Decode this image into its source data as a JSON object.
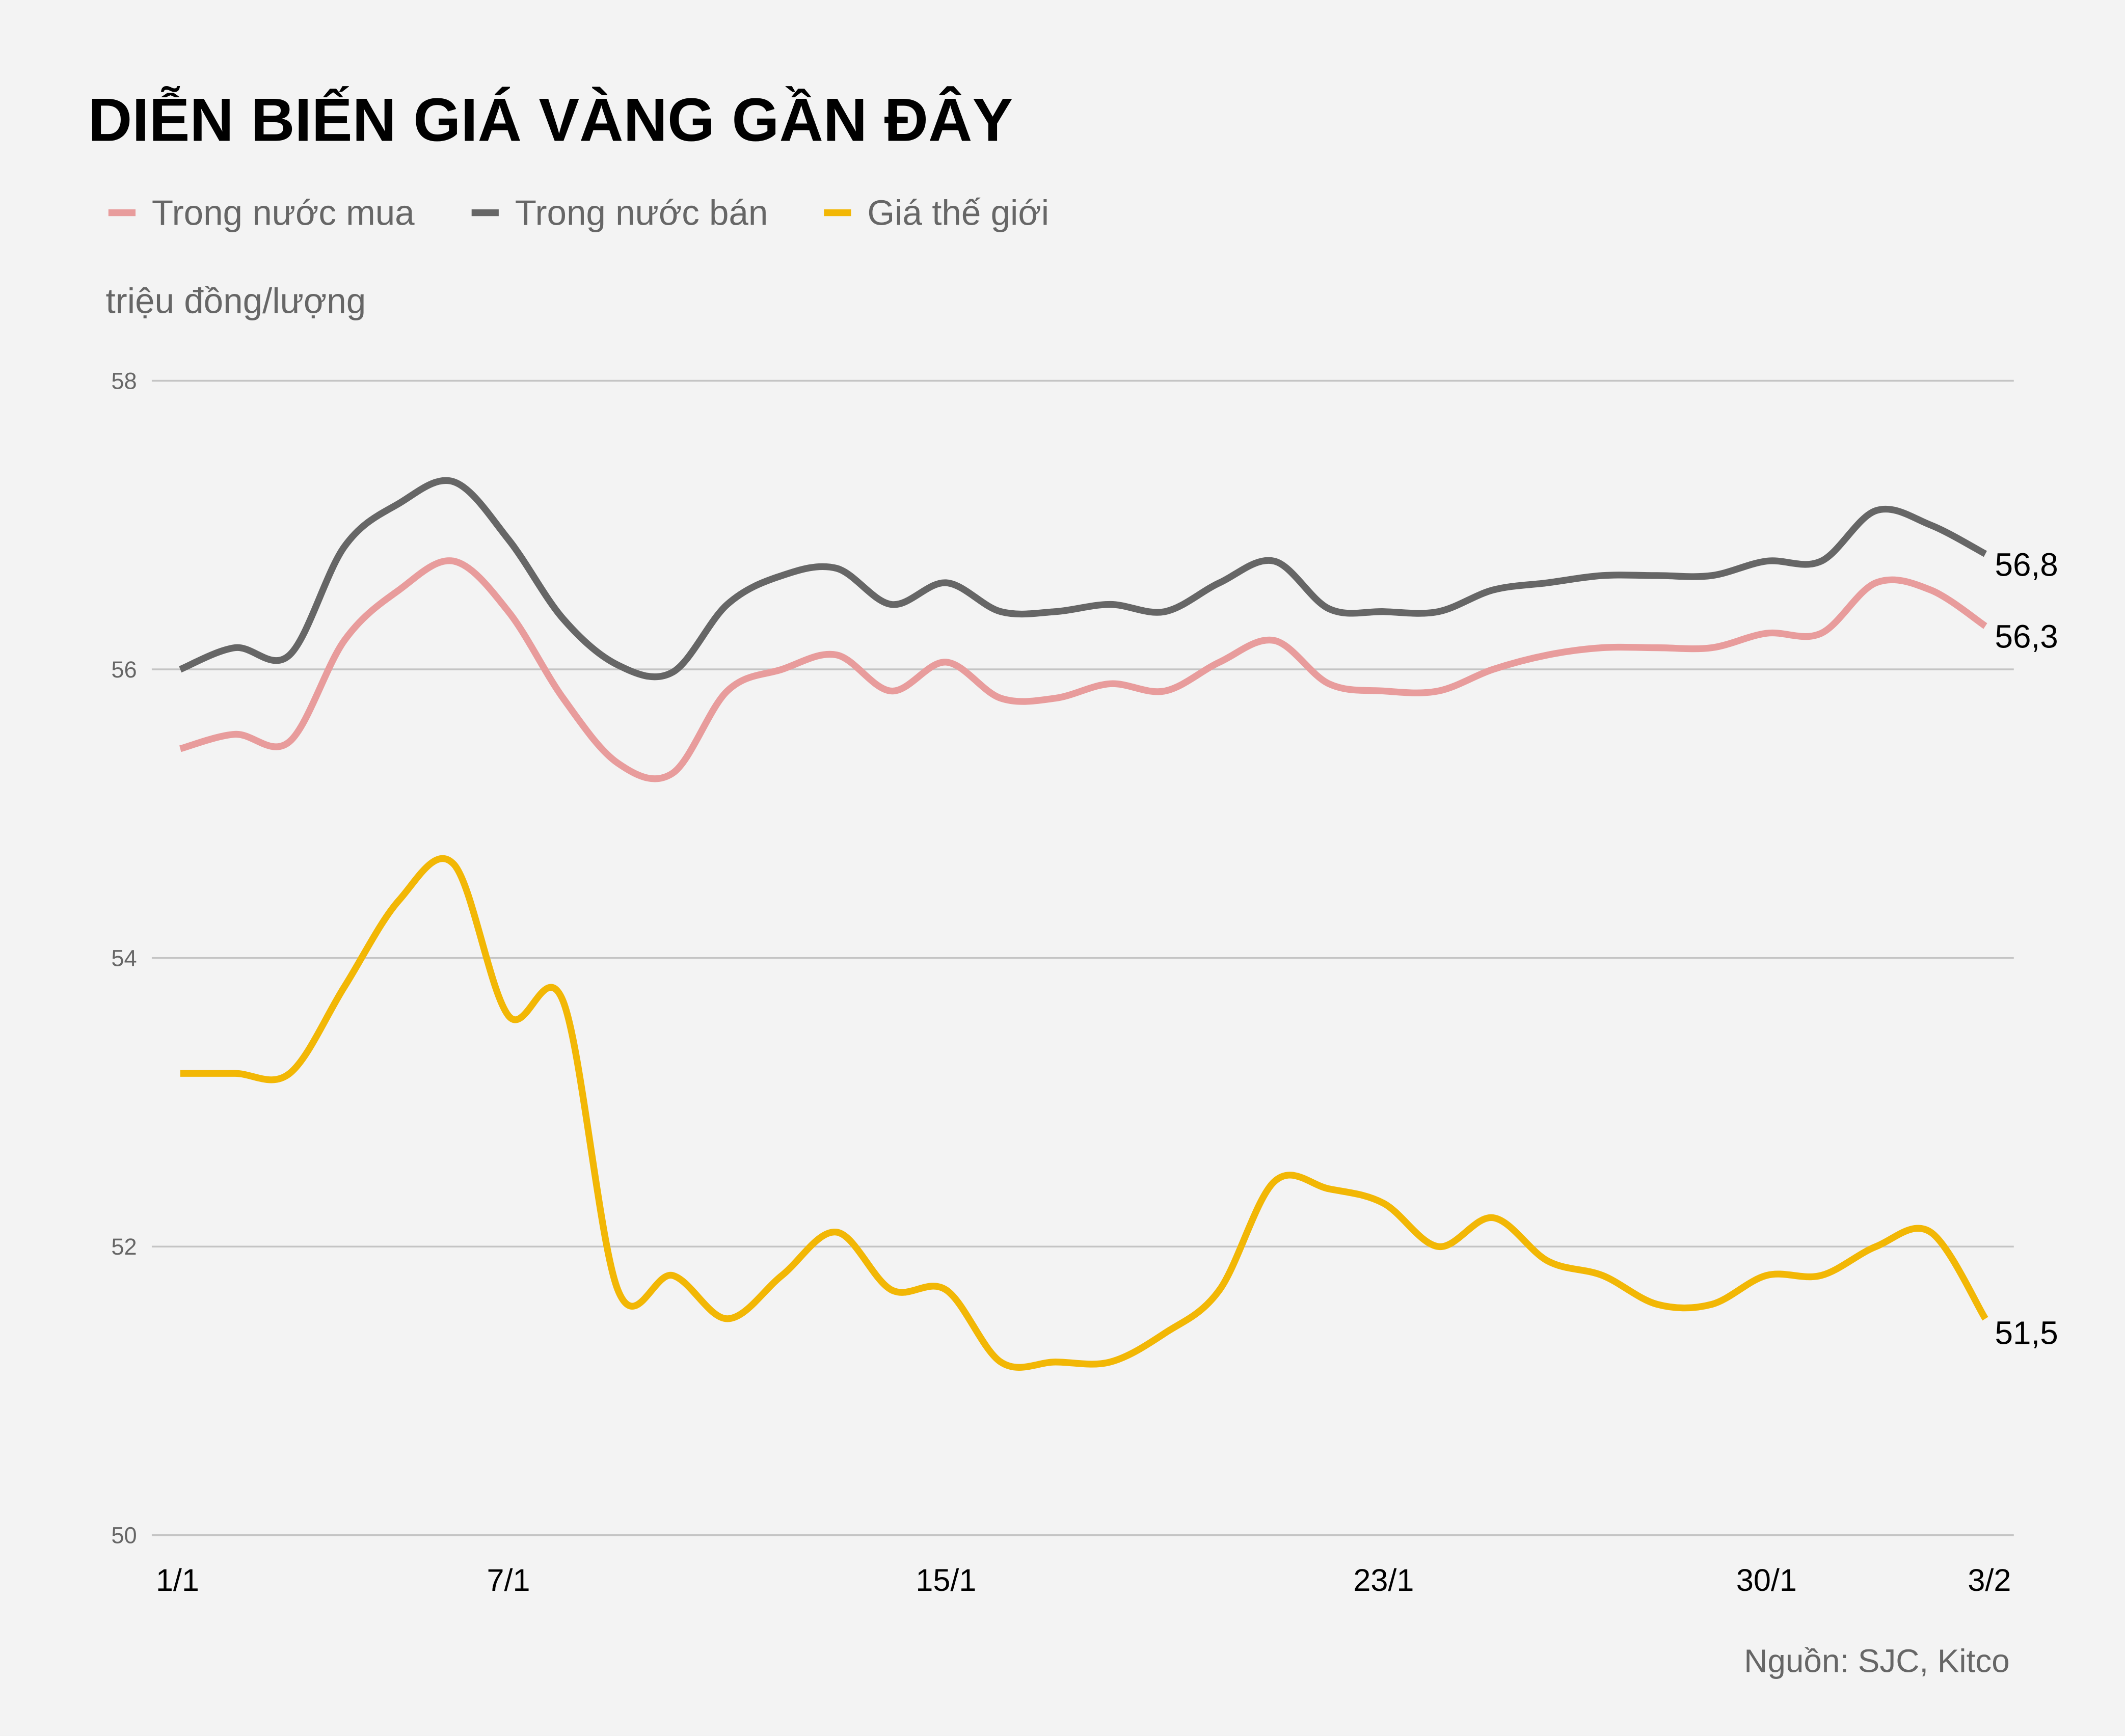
{
  "chart_data": {
    "type": "line",
    "title": "DIỄN BIẾN GIÁ VÀNG GẦN ĐÂY",
    "ylabel": "triệu đồng/lượng",
    "xlabel": "",
    "source": "Nguồn: SJC, Kitco",
    "ylim": [
      50,
      58
    ],
    "yticks": [
      "50",
      "52",
      "54",
      "56",
      "58"
    ],
    "grid": "horizontal",
    "legend_position": "top-left",
    "x": [
      "1/1",
      "2/1",
      "3/1",
      "4/1",
      "5/1",
      "6/1",
      "7/1",
      "8/1",
      "9/1",
      "10/1",
      "11/1",
      "12/1",
      "13/1",
      "14/1",
      "15/1",
      "16/1",
      "17/1",
      "18/1",
      "19/1",
      "20/1",
      "21/1",
      "22/1",
      "23/1",
      "24/1",
      "25/1",
      "26/1",
      "27/1",
      "28/1",
      "29/1",
      "30/1",
      "31/1",
      "1/2",
      "2/2",
      "3/2"
    ],
    "xticks": [
      "1/1",
      "7/1",
      "15/1",
      "23/1",
      "30/1",
      "3/2"
    ],
    "series": [
      {
        "name": "Trong nước mua",
        "color": "#e89c9c",
        "end_label": "56,3",
        "values": [
          55.45,
          55.55,
          55.5,
          56.2,
          56.55,
          56.75,
          56.4,
          55.8,
          55.35,
          55.28,
          55.85,
          56.0,
          56.1,
          55.85,
          56.05,
          55.8,
          55.8,
          55.9,
          55.85,
          56.05,
          56.2,
          55.9,
          55.85,
          55.85,
          56.0,
          56.1,
          56.15,
          56.15,
          56.15,
          56.25,
          56.25,
          56.6,
          56.55,
          56.3
        ]
      },
      {
        "name": "Trong nước bán",
        "color": "#666666",
        "end_label": "56,8",
        "values": [
          56.0,
          56.15,
          56.1,
          56.85,
          57.15,
          57.3,
          56.9,
          56.35,
          56.03,
          55.98,
          56.45,
          56.65,
          56.7,
          56.45,
          56.6,
          56.4,
          56.4,
          56.45,
          56.4,
          56.6,
          56.75,
          56.42,
          56.4,
          56.4,
          56.55,
          56.6,
          56.65,
          56.65,
          56.65,
          56.75,
          56.75,
          57.1,
          57.0,
          56.8
        ]
      },
      {
        "name": "Giá thế giới",
        "color": "#f2b705",
        "end_label": "51,5",
        "values": [
          53.2,
          53.2,
          53.2,
          53.8,
          54.4,
          54.65,
          53.6,
          53.7,
          51.7,
          51.8,
          51.5,
          51.8,
          52.1,
          51.7,
          51.7,
          51.2,
          51.2,
          51.2,
          51.4,
          51.7,
          52.45,
          52.4,
          52.3,
          52.0,
          52.2,
          51.9,
          51.8,
          51.6,
          51.6,
          51.8,
          51.8,
          52.0,
          52.1,
          51.5
        ]
      }
    ]
  }
}
